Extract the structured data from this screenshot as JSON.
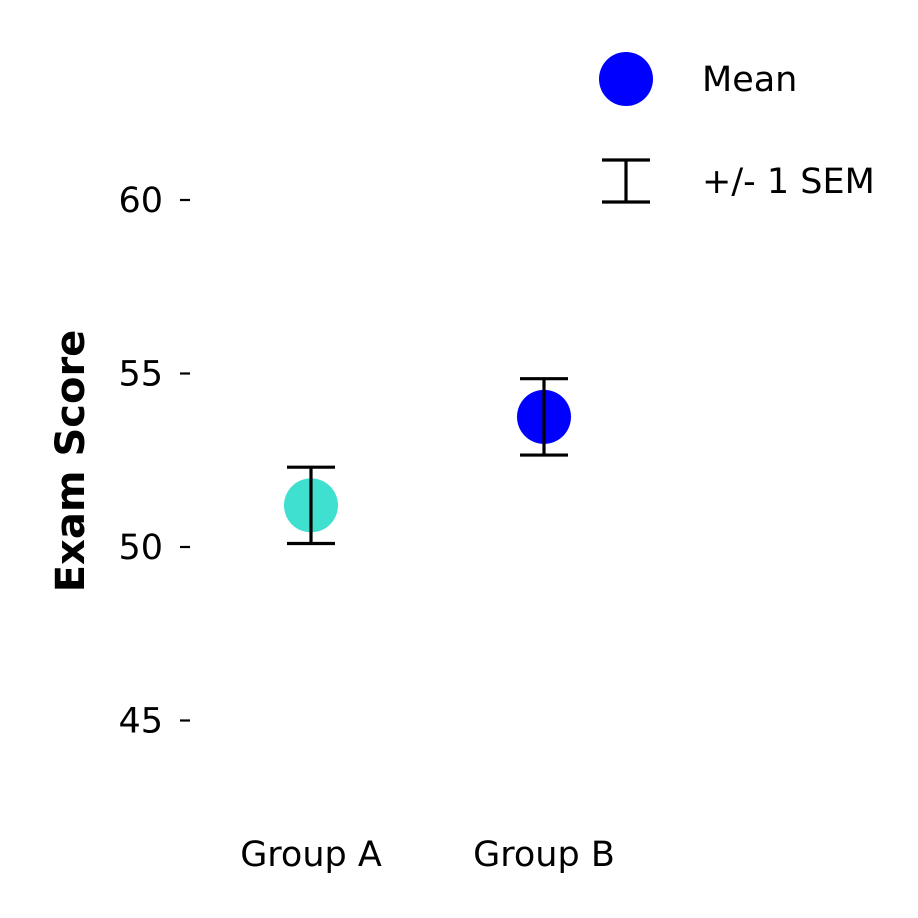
{
  "chart_data": {
    "type": "scatter",
    "title": "",
    "xlabel": "",
    "ylabel": "Exam Score",
    "categories": [
      "Group A",
      "Group B"
    ],
    "means": [
      51.2,
      53.75
    ],
    "sem": [
      1.1,
      1.1
    ],
    "point_colors": [
      "#40e0d0",
      "#0000ff"
    ],
    "errorbar_color": "#000000",
    "yticks": [
      45,
      50,
      55,
      60
    ],
    "ylim": [
      42,
      64.5
    ],
    "grid": false,
    "legend": {
      "position": "top-right",
      "entries": [
        {
          "label": "Mean",
          "marker": "circle",
          "color": "#0000ff"
        },
        {
          "label": "+/- 1 SEM",
          "marker": "errorbar",
          "color": "#000000"
        }
      ]
    }
  }
}
